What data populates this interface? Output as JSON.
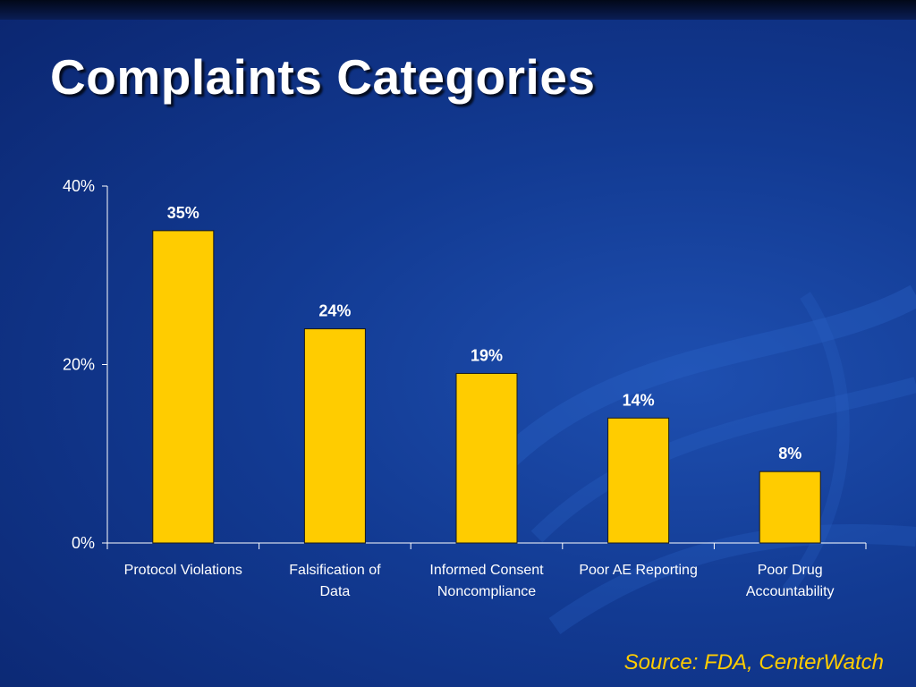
{
  "slide": {
    "title": "Complaints Categories",
    "source": "Source: FDA, CenterWatch"
  },
  "colors": {
    "bar_fill": "#ffcc00",
    "bar_stroke": "#1a1a1a",
    "text": "#ffffff",
    "source_text": "#ffcc00"
  },
  "chart_data": {
    "type": "bar",
    "categories": [
      [
        "Protocol Violations"
      ],
      [
        "Falsification of",
        "Data"
      ],
      [
        "Informed Consent",
        "Noncompliance"
      ],
      [
        "Poor AE Reporting"
      ],
      [
        "Poor Drug",
        "Accountability"
      ]
    ],
    "values": [
      35,
      24,
      19,
      14,
      8
    ],
    "data_labels": [
      "35%",
      "24%",
      "19%",
      "14%",
      "8%"
    ],
    "yticks": [
      0,
      20,
      40
    ],
    "ytick_labels": [
      "0%",
      "20%",
      "40%"
    ],
    "ylim": [
      0,
      40
    ],
    "grid": false,
    "legend": "none"
  }
}
